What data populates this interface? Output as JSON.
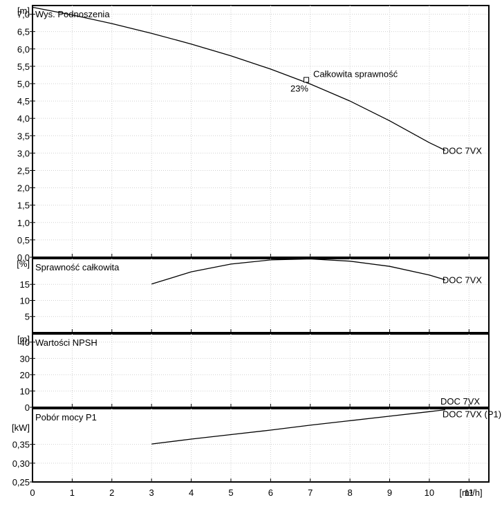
{
  "chart_data": [
    {
      "type": "line",
      "title": "Wys. Podnoszenia",
      "yunit": "[m]",
      "ylim": [
        0,
        7.25
      ],
      "yticks": [
        {
          "v": 0.0,
          "label": "0,0"
        },
        {
          "v": 0.5,
          "label": "0,5"
        },
        {
          "v": 1.0,
          "label": "1,0"
        },
        {
          "v": 1.5,
          "label": "1,5"
        },
        {
          "v": 2.0,
          "label": "2,0"
        },
        {
          "v": 2.5,
          "label": "2,5"
        },
        {
          "v": 3.0,
          "label": "3,0"
        },
        {
          "v": 3.5,
          "label": "3,5"
        },
        {
          "v": 4.0,
          "label": "4,0"
        },
        {
          "v": 4.5,
          "label": "4,5"
        },
        {
          "v": 5.0,
          "label": "5,0"
        },
        {
          "v": 5.5,
          "label": "5,5"
        },
        {
          "v": 6.0,
          "label": "6,0"
        },
        {
          "v": 6.5,
          "label": "6,5"
        },
        {
          "v": 7.0,
          "label": "7,0"
        }
      ],
      "series": [
        {
          "name": "DOC 7VX",
          "x": [
            0,
            1,
            2,
            3,
            4,
            5,
            6,
            7,
            8,
            9,
            10,
            10.4
          ],
          "y": [
            7.2,
            6.98,
            6.73,
            6.45,
            6.14,
            5.8,
            5.42,
            4.99,
            4.5,
            3.93,
            3.3,
            3.08
          ]
        }
      ],
      "annotation": {
        "label": "Całkowita sprawność",
        "value_label": "23%",
        "x": 6.9,
        "y": 5.11
      }
    },
    {
      "type": "line",
      "title": "Sprawność całkowita",
      "yunit": "[%]",
      "ylim": [
        0,
        23
      ],
      "yticks": [
        {
          "v": 5,
          "label": "5"
        },
        {
          "v": 10,
          "label": "10"
        },
        {
          "v": 15,
          "label": "15"
        }
      ],
      "series": [
        {
          "name": "DOC 7VX",
          "x": [
            3,
            4,
            5,
            6,
            7,
            8,
            9,
            10,
            10.4
          ],
          "y": [
            15.1,
            18.9,
            21.3,
            22.6,
            22.9,
            22.2,
            20.6,
            17.9,
            16.4
          ]
        }
      ]
    },
    {
      "type": "line",
      "title": "Wartości NPSH",
      "yunit": "[m]",
      "ylim": [
        0,
        45
      ],
      "yticks": [
        {
          "v": 0,
          "label": "0"
        },
        {
          "v": 10,
          "label": "10"
        },
        {
          "v": 20,
          "label": "20"
        },
        {
          "v": 30,
          "label": "30"
        },
        {
          "v": 40,
          "label": "40"
        }
      ],
      "series": [
        {
          "name": "DOC 7VX",
          "x": [],
          "y": []
        }
      ]
    },
    {
      "type": "line",
      "title": "Pobór mocy P1",
      "yunit": "[kW]",
      "ylim": [
        0.25,
        0.445
      ],
      "yticks": [
        {
          "v": 0.25,
          "label": "0,25"
        },
        {
          "v": 0.3,
          "label": "0,30"
        },
        {
          "v": 0.35,
          "label": "0,35"
        }
      ],
      "series": [
        {
          "name": "DOC 7VX (P1)",
          "x": [
            3,
            4,
            5,
            6,
            7,
            8,
            9,
            10,
            10.4
          ],
          "y": [
            0.351,
            0.364,
            0.376,
            0.388,
            0.401,
            0.413,
            0.425,
            0.437,
            0.442
          ]
        }
      ]
    }
  ],
  "x_axis": {
    "unit": "[m³/h]",
    "xlim": [
      0,
      11.5
    ],
    "ticks": [
      {
        "v": 0,
        "label": "0"
      },
      {
        "v": 1,
        "label": "1"
      },
      {
        "v": 2,
        "label": "2"
      },
      {
        "v": 3,
        "label": "3"
      },
      {
        "v": 4,
        "label": "4"
      },
      {
        "v": 5,
        "label": "5"
      },
      {
        "v": 6,
        "label": "6"
      },
      {
        "v": 7,
        "label": "7"
      },
      {
        "v": 8,
        "label": "8"
      },
      {
        "v": 9,
        "label": "9"
      },
      {
        "v": 10,
        "label": "10"
      },
      {
        "v": 11,
        "label": "11"
      }
    ]
  }
}
